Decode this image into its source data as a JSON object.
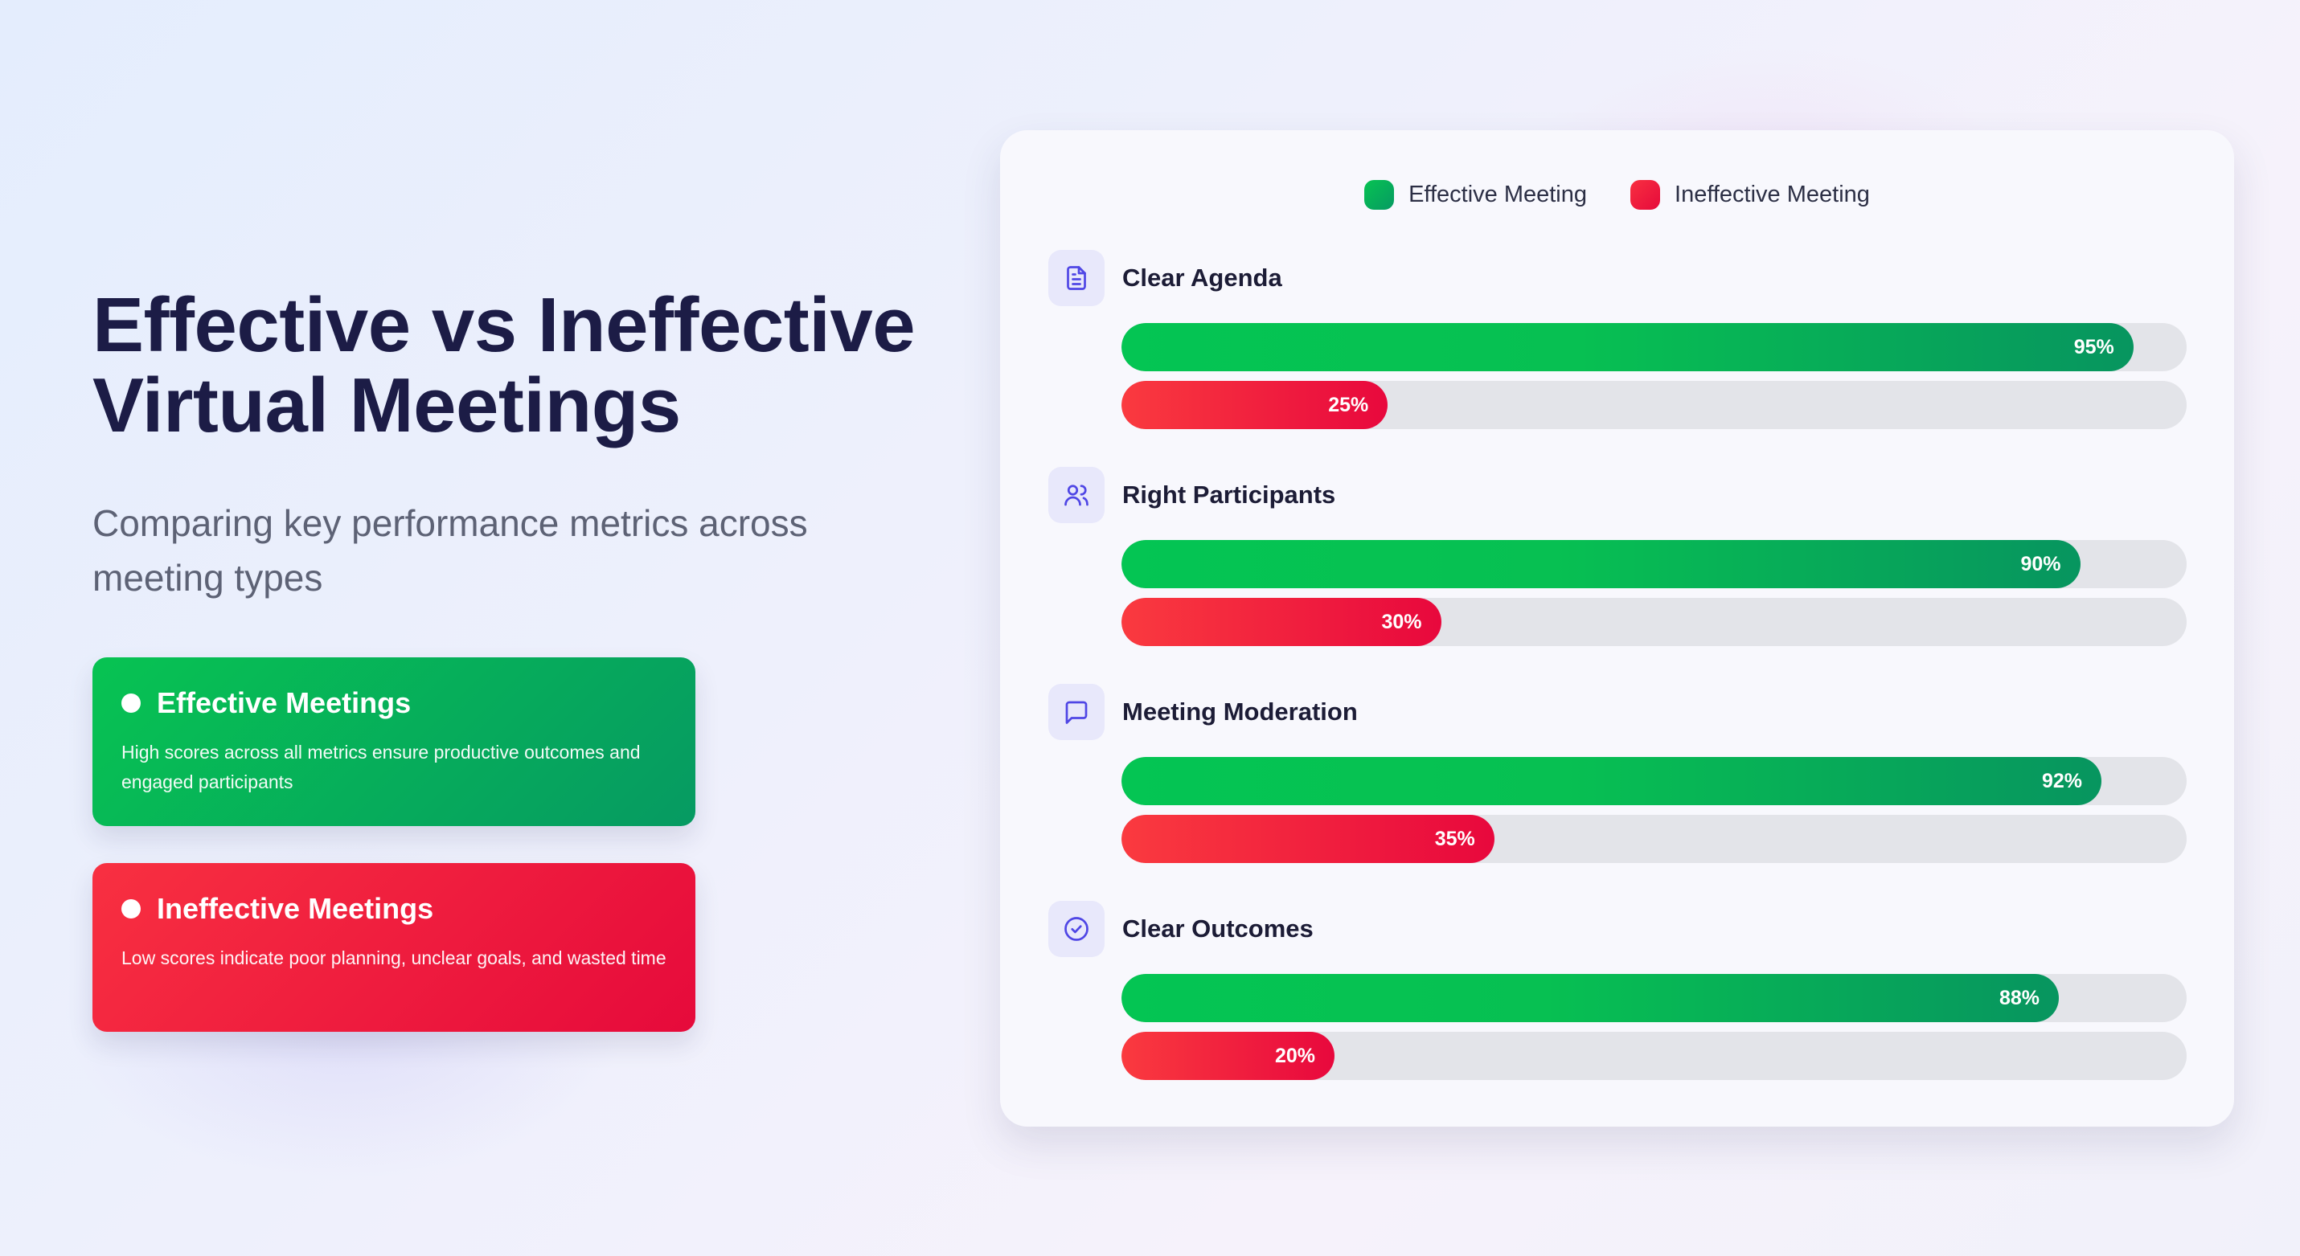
{
  "header": {
    "title_line1": "Effective vs Ineffective",
    "title_line2": "Virtual Meetings",
    "subtitle": "Comparing key performance metrics across meeting types"
  },
  "cards": {
    "effective": {
      "title": "Effective Meetings",
      "text": "High scores across all metrics ensure productive outcomes and engaged participants"
    },
    "ineffective": {
      "title": "Ineffective Meetings",
      "text": "Low scores indicate poor planning, unclear goals, and wasted time"
    }
  },
  "colors": {
    "effective": "#07c352",
    "ineffective": "#f83041",
    "track": "#e3e4e9",
    "title": "#1c1c46",
    "icon_accent": "#4f46e5"
  },
  "chart_data": {
    "type": "bar",
    "orientation": "horizontal",
    "legend_position": "top-center",
    "xlim": [
      0,
      100
    ],
    "categories": [
      "Clear Agenda",
      "Right Participants",
      "Meeting Moderation",
      "Clear Outcomes"
    ],
    "category_icons": [
      "document-icon",
      "users-icon",
      "message-icon",
      "check-circle-icon"
    ],
    "series": [
      {
        "name": "Effective Meeting",
        "values": [
          95,
          90,
          92,
          88
        ],
        "labels": [
          "95%",
          "90%",
          "92%",
          "88%"
        ]
      },
      {
        "name": "Ineffective Meeting",
        "values": [
          25,
          30,
          35,
          20
        ],
        "labels": [
          "25%",
          "30%",
          "35%",
          "20%"
        ]
      }
    ]
  }
}
